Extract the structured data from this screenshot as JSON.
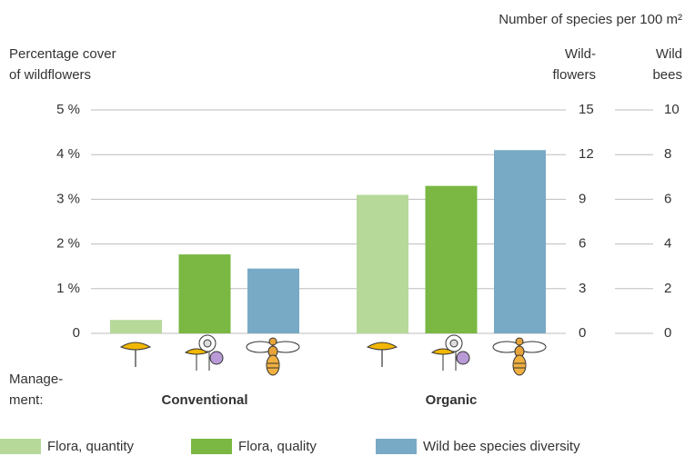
{
  "chart_data": {
    "type": "bar",
    "title": "Number of species per 100 m²",
    "ylabel": [
      "Percentage cover",
      "of wildflowers"
    ],
    "y2label": [
      "Wild-",
      "flowers"
    ],
    "y3label": [
      "Wild",
      "bees"
    ],
    "xlabel": [
      "Manage-",
      "ment:"
    ],
    "categories": [
      "Conventional",
      "Organic"
    ],
    "series": [
      {
        "name": "Flora, quantity",
        "color": "#b6d99a",
        "axis": "y",
        "values": [
          0.3,
          3.1
        ]
      },
      {
        "name": "Flora, quality",
        "color": "#7ab743",
        "axis": "y2",
        "values": [
          5.3,
          9.9
        ]
      },
      {
        "name": "Wild bee species diversity",
        "color": "#78aac5",
        "axis": "y3",
        "values": [
          2.9,
          8.2
        ]
      }
    ],
    "ylim": [
      0,
      5
    ],
    "yticks": [
      0,
      {
        "value": 1,
        "label": "1 %"
      },
      {
        "value": 2,
        "label": "2 %"
      },
      {
        "value": 3,
        "label": "3 %"
      },
      {
        "value": 4,
        "label": "4 %"
      },
      {
        "value": 5,
        "label": "5 %"
      }
    ],
    "y2lim": [
      0,
      15
    ],
    "y2ticks": [
      0,
      3,
      6,
      9,
      12,
      15
    ],
    "y3lim": [
      0,
      10
    ],
    "y3ticks": [
      0,
      2,
      4,
      6,
      8,
      10
    ],
    "grid": true
  }
}
